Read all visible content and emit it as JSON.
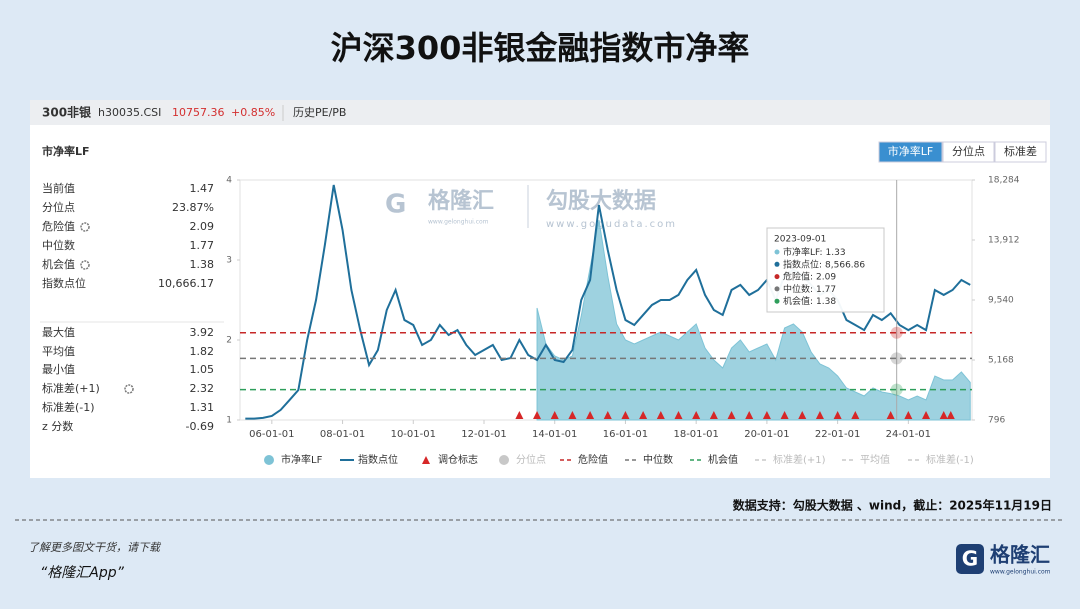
{
  "title": "沪深300非银金融指数市净率",
  "header": {
    "name": "300非银",
    "code": "h30035.CSI",
    "price": "10757.36",
    "change": "+0.85%",
    "tab": "历史PE/PB"
  },
  "panel_title": "市净率LF",
  "buttons": [
    "市净率LF",
    "分位点",
    "标准差"
  ],
  "stats": [
    {
      "label": "当前值",
      "value": "1.47"
    },
    {
      "label": "分位点",
      "value": "23.87%"
    },
    {
      "label": "危险值",
      "value": "2.09",
      "gear": true
    },
    {
      "label": "中位数",
      "value": "1.77"
    },
    {
      "label": "机会值",
      "value": "1.38",
      "gear": true
    },
    {
      "label": "指数点位",
      "value": "10,666.17"
    },
    {
      "label": "最大值",
      "value": "3.92"
    },
    {
      "label": "平均值",
      "value": "1.82"
    },
    {
      "label": "最小值",
      "value": "1.05"
    },
    {
      "label": "标准差(+1)",
      "value": "2.32",
      "gear": true
    },
    {
      "label": "标准差(-1)",
      "value": "1.31"
    },
    {
      "label": "z 分数",
      "value": "-0.69"
    }
  ],
  "watermark": {
    "brand": "格隆汇",
    "brand_url": "www.gelonghui.com",
    "source": "勾股大数据",
    "source_url": "www.gogudata.com"
  },
  "chart_data": {
    "type": "line",
    "x": [
      2005.25,
      2005.5,
      2005.75,
      2006,
      2006.25,
      2006.5,
      2006.75,
      2007,
      2007.25,
      2007.5,
      2007.75,
      2008,
      2008.25,
      2008.5,
      2008.75,
      2009,
      2009.25,
      2009.5,
      2009.75,
      2010,
      2010.25,
      2010.5,
      2010.75,
      2011,
      2011.25,
      2011.5,
      2011.75,
      2012,
      2012.25,
      2012.5,
      2012.75,
      2013,
      2013.25,
      2013.5,
      2013.75,
      2014,
      2014.25,
      2014.5,
      2014.75,
      2015,
      2015.25,
      2015.5,
      2015.75,
      2016,
      2016.25,
      2016.5,
      2016.75,
      2017,
      2017.25,
      2017.5,
      2017.75,
      2018,
      2018.25,
      2018.5,
      2018.75,
      2019,
      2019.25,
      2019.5,
      2019.75,
      2020,
      2020.25,
      2020.5,
      2020.75,
      2021,
      2021.25,
      2021.5,
      2021.75,
      2022,
      2022.25,
      2022.5,
      2022.75,
      2023,
      2023.25,
      2023.5,
      2023.75,
      2024,
      2024.25,
      2024.5,
      2024.75,
      2025,
      2025.25,
      2025.5,
      2025.75
    ],
    "series": [
      {
        "name": "市净率LF",
        "color": "#7ec3d6",
        "kind": "area",
        "values": [
          null,
          null,
          null,
          null,
          null,
          null,
          null,
          null,
          null,
          null,
          null,
          null,
          null,
          null,
          null,
          null,
          null,
          null,
          null,
          null,
          null,
          null,
          null,
          null,
          null,
          null,
          null,
          null,
          null,
          null,
          null,
          null,
          null,
          2.4,
          1.95,
          1.8,
          1.75,
          1.8,
          2.3,
          2.9,
          3.5,
          2.8,
          2.2,
          2.0,
          1.95,
          2.0,
          2.05,
          2.1,
          2.05,
          2.0,
          2.1,
          2.2,
          1.9,
          1.75,
          1.65,
          1.9,
          2.0,
          1.85,
          1.9,
          1.95,
          1.75,
          2.15,
          2.2,
          2.1,
          1.85,
          1.7,
          1.65,
          1.55,
          1.4,
          1.35,
          1.3,
          1.4,
          1.35,
          1.33,
          1.3,
          1.25,
          1.3,
          1.25,
          1.55,
          1.5,
          1.5,
          1.6,
          1.47
        ]
      },
      {
        "name": "指数点位",
        "color": "#1f6f9a",
        "kind": "line",
        "axis": "y2",
        "values": [
          900,
          900,
          950,
          1090,
          1530,
          2250,
          2980,
          6630,
          9540,
          13550,
          17920,
          14640,
          10270,
          7350,
          4800,
          5900,
          8810,
          10270,
          8080,
          7720,
          6260,
          6630,
          7720,
          6990,
          7350,
          6260,
          5530,
          5900,
          6260,
          5170,
          5310,
          6630,
          5530,
          5170,
          6260,
          5170,
          5020,
          5900,
          9540,
          11000,
          16460,
          13180,
          10270,
          8080,
          7720,
          8450,
          9180,
          9540,
          9540,
          9910,
          11000,
          11730,
          9910,
          8810,
          8450,
          10270,
          10640,
          9910,
          10270,
          11000,
          9540,
          11370,
          11730,
          11370,
          10640,
          9910,
          10270,
          9540,
          8080,
          7720,
          7350,
          8450,
          8080,
          8570,
          7720,
          7350,
          7720,
          7350,
          10270,
          9910,
          10270,
          11000,
          10640
        ]
      }
    ],
    "markers": {
      "name": "调仓标志",
      "color": "#d62728",
      "x": [
        2013.0,
        2013.5,
        2014.0,
        2014.5,
        2015.0,
        2015.5,
        2016.0,
        2016.5,
        2017.0,
        2017.5,
        2018.0,
        2018.5,
        2019.0,
        2019.5,
        2020.0,
        2020.5,
        2021.0,
        2021.5,
        2022.0,
        2022.5,
        2023.5,
        2024.0,
        2024.5,
        2025.0,
        2025.2
      ]
    },
    "thresholds": [
      {
        "name": "危险值",
        "value": 2.09,
        "color": "#c62828"
      },
      {
        "name": "中位数",
        "value": 1.77,
        "color": "#777777"
      },
      {
        "name": "机会值",
        "value": 1.38,
        "color": "#2e9e5b"
      }
    ],
    "inactive_legend": [
      {
        "name": "分位点",
        "color": "#c8c8c8",
        "kind": "dot"
      },
      {
        "name": "标准差(+1)",
        "color": "#c8c8c8",
        "kind": "dash"
      },
      {
        "name": "平均值",
        "color": "#c8c8c8",
        "kind": "dash"
      },
      {
        "name": "标准差(-1)",
        "color": "#c8c8c8",
        "kind": "dash"
      }
    ],
    "xlim": [
      2005.1,
      2025.8
    ],
    "xticks": [
      {
        "value": 2006,
        "label": "06-01-01"
      },
      {
        "value": 2008,
        "label": "08-01-01"
      },
      {
        "value": 2010,
        "label": "10-01-01"
      },
      {
        "value": 2012,
        "label": "12-01-01"
      },
      {
        "value": 2014,
        "label": "14-01-01"
      },
      {
        "value": 2016,
        "label": "16-01-01"
      },
      {
        "value": 2018,
        "label": "18-01-01"
      },
      {
        "value": 2020,
        "label": "20-01-01"
      },
      {
        "value": 2022,
        "label": "22-01-01"
      },
      {
        "value": 2024,
        "label": "24-01-01"
      }
    ],
    "ylim": [
      1,
      4
    ],
    "yticks": [
      1,
      2,
      3,
      4
    ],
    "y2lim": [
      796,
      18284
    ],
    "y2ticks": [
      796,
      {
        "value": 5168,
        "label": "5,168"
      },
      {
        "value": 9540,
        "label": "9,540"
      },
      {
        "value": 13912,
        "label": "13,912"
      },
      {
        "value": 18284,
        "label": "18,284"
      }
    ],
    "cursor_x": 2023.67,
    "tooltip": {
      "date": "2023-09-01",
      "items": [
        {
          "label": "市净率LF:",
          "value": 1.33,
          "color": "#7ec3d6"
        },
        {
          "label": "指数点位:",
          "value": 8566.86,
          "value_label": "8,566.86",
          "color": "#1f6f9a"
        },
        {
          "label": "危险值:",
          "value": 2.09,
          "color": "#c62828"
        },
        {
          "label": "中位数:",
          "value": 1.77,
          "color": "#777777"
        },
        {
          "label": "机会值:",
          "value": 1.38,
          "color": "#2e9e5b"
        }
      ]
    }
  },
  "source_note": "数据支持：勾股大数据 、wind，截止：2025年11月19日",
  "promo": {
    "line1": "了解更多图文干货，请下载",
    "line2": "“格隆汇App”"
  },
  "logo": {
    "name": "格隆汇",
    "url": "www.gelonghui.com"
  }
}
